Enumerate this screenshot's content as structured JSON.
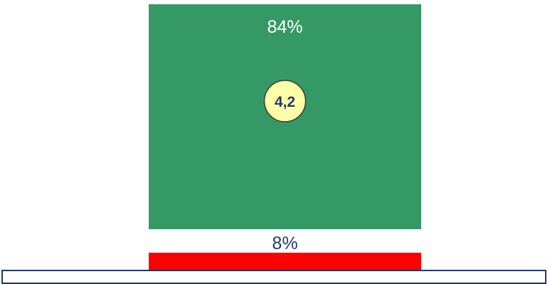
{
  "colors": {
    "positive": "#359966",
    "negative": "#ff0000",
    "background": "#ffffff",
    "label_on_bar": "#ffffff",
    "label_dark": "#1f3a77",
    "badge_fill": "#ffffa6",
    "badge_stroke": "#3a3a3a",
    "panel_border": "#1f3864"
  },
  "chart_data": {
    "type": "bar",
    "orientation": "vertical-stacked",
    "series": [
      {
        "name": "",
        "value": 84,
        "label": "84%",
        "color": "#359966"
      },
      {
        "name": "",
        "value": 8,
        "label": "8%",
        "color": "#ff0000"
      }
    ],
    "unit": "%",
    "score": {
      "value": 4.2,
      "label": "4,2"
    },
    "title": "",
    "xlabel": "",
    "ylabel": ""
  }
}
